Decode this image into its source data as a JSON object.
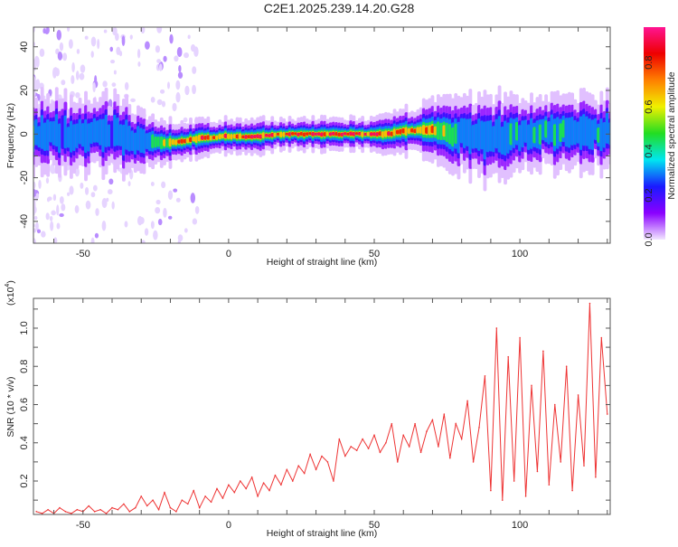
{
  "title": "C2E1.2025.239.14.20.G28",
  "chart_data": [
    {
      "type": "heatmap",
      "title": "C2E1.2025.239.14.20.G28",
      "xlabel": "Height of straight line (km)",
      "ylabel": "Frequency (Hz)",
      "xlim": [
        -67,
        131
      ],
      "ylim": [
        -50,
        49
      ],
      "xticks": [
        -50,
        0,
        50,
        100
      ],
      "xtick_labels": [
        "-50",
        "0",
        "50",
        "100"
      ],
      "yticks": [
        -40,
        -20,
        0,
        20,
        40
      ],
      "ytick_labels": [
        "-40",
        "-20",
        "0",
        "20",
        "40"
      ],
      "colorbar": {
        "label": "Normalized spectral amplitude",
        "range": [
          0,
          0.96
        ],
        "ticks": [
          0,
          0.2,
          0.4,
          0.6,
          0.8
        ],
        "tick_labels": [
          "0.0",
          "0.2",
          "0.4",
          "0.6",
          "0.8"
        ],
        "colormap": [
          "#f2e6ff",
          "#8a00ff",
          "#1a1aff",
          "#00e6f0",
          "#22dd22",
          "#f0f000",
          "#ff8000",
          "#ee0000",
          "#ff1493"
        ]
      },
      "ridge": {
        "x": [
          -66,
          -60,
          -50,
          -40,
          -30,
          -20,
          -10,
          0,
          10,
          20,
          30,
          40,
          50,
          55,
          60,
          70,
          80,
          90,
          100,
          110,
          120,
          130
        ],
        "center_hz": [
          0,
          0,
          0,
          0,
          -3,
          -4,
          -2,
          -1,
          -1,
          0,
          0,
          0,
          0,
          0,
          1.5,
          2,
          0,
          -2,
          0,
          1,
          0,
          1
        ],
        "peak_amplitude": [
          0.35,
          0.35,
          0.35,
          0.33,
          0.4,
          0.75,
          0.85,
          0.88,
          0.88,
          0.9,
          0.92,
          0.9,
          0.92,
          0.9,
          0.75,
          0.7,
          0.45,
          0.4,
          0.42,
          0.45,
          0.42,
          0.4
        ],
        "spread_hz": [
          5,
          5,
          5,
          5,
          4,
          3,
          2.5,
          2.3,
          2.3,
          2.2,
          2.2,
          2.2,
          2.2,
          2.5,
          3,
          4,
          5,
          6,
          5,
          5,
          5,
          5
        ]
      }
    },
    {
      "type": "line",
      "xlabel": "Height of straight line (km)",
      "ylabel": "SNR (10 * v/v)",
      "y_multiplier": "(x10",
      "y_multiplier_exp": "4",
      "xlim": [
        -67,
        131
      ],
      "ylim": [
        0.025,
        1.156
      ],
      "xticks": [
        -50,
        0,
        50,
        100
      ],
      "xtick_labels": [
        "-50",
        "0",
        "50",
        "100"
      ],
      "yticks": [
        0.2,
        0.4,
        0.6,
        0.8,
        1.0
      ],
      "ytick_labels": [
        "0.2",
        "0.4",
        "0.6",
        "0.8",
        "1.0"
      ],
      "series": [
        {
          "name": "SNR",
          "color": "#ee3333",
          "x_start": -66,
          "x_step": 2,
          "values": [
            0.04,
            0.03,
            0.05,
            0.03,
            0.06,
            0.04,
            0.03,
            0.05,
            0.04,
            0.07,
            0.04,
            0.05,
            0.03,
            0.06,
            0.05,
            0.08,
            0.04,
            0.06,
            0.12,
            0.07,
            0.1,
            0.05,
            0.14,
            0.06,
            0.04,
            0.1,
            0.08,
            0.15,
            0.06,
            0.12,
            0.09,
            0.16,
            0.11,
            0.18,
            0.14,
            0.2,
            0.16,
            0.22,
            0.12,
            0.19,
            0.15,
            0.23,
            0.18,
            0.26,
            0.2,
            0.28,
            0.24,
            0.34,
            0.26,
            0.33,
            0.3,
            0.2,
            0.42,
            0.33,
            0.38,
            0.36,
            0.42,
            0.37,
            0.44,
            0.35,
            0.4,
            0.5,
            0.3,
            0.44,
            0.38,
            0.5,
            0.35,
            0.46,
            0.52,
            0.38,
            0.55,
            0.32,
            0.5,
            0.42,
            0.62,
            0.3,
            0.48,
            0.75,
            0.15,
            1.0,
            0.1,
            0.85,
            0.2,
            0.95,
            0.12,
            0.7,
            0.25,
            0.88,
            0.18,
            0.6,
            0.3,
            0.8,
            0.15,
            0.65,
            0.28,
            1.13,
            0.22,
            0.95,
            0.55
          ]
        }
      ]
    }
  ]
}
